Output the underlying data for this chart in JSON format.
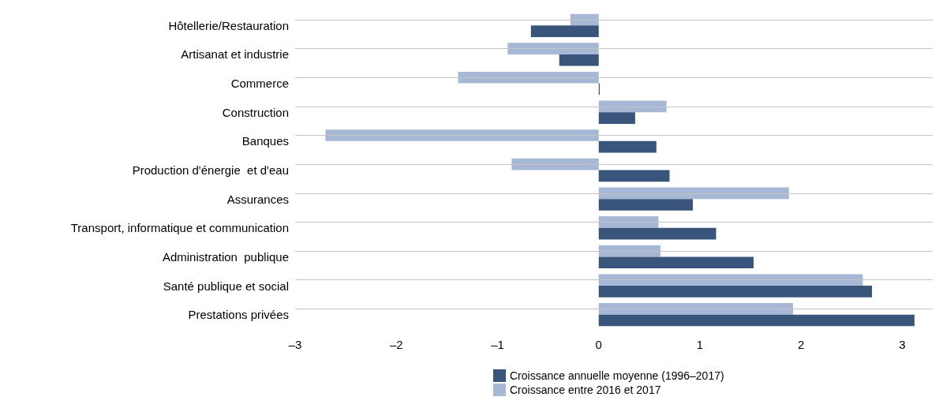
{
  "chart_data": {
    "type": "bar",
    "orientation": "horizontal",
    "categories": [
      "Hôtellerie/Restauration",
      "Artisanat et industrie",
      "Commerce",
      "Construction",
      "Banques",
      "Production d'énergie  et d'eau",
      "Assurances",
      "Transport, informatique et communication",
      "Administration  publique",
      "Santé publique et social",
      "Prestations privées"
    ],
    "series": [
      {
        "name": "Croissance annuelle moyenne (1996–2017)",
        "color": "#3a557c",
        "values": [
          -0.67,
          -0.39,
          0.01,
          0.36,
          0.57,
          0.7,
          0.93,
          1.16,
          1.53,
          2.7,
          3.12
        ]
      },
      {
        "name": "Croissance entre 2016 et 2017",
        "color": "#a6b8d6",
        "values": [
          -0.28,
          -0.9,
          -1.39,
          0.67,
          -2.7,
          -0.86,
          1.88,
          0.59,
          0.61,
          2.61,
          1.92
        ]
      }
    ],
    "xlim": [
      -3,
      3.3
    ],
    "xticks": [
      {
        "value": -3,
        "label": "–3"
      },
      {
        "value": -2,
        "label": "–2"
      },
      {
        "value": -1,
        "label": "–1"
      },
      0,
      1,
      2,
      3
    ],
    "grid": "y",
    "legend": "bottom"
  }
}
